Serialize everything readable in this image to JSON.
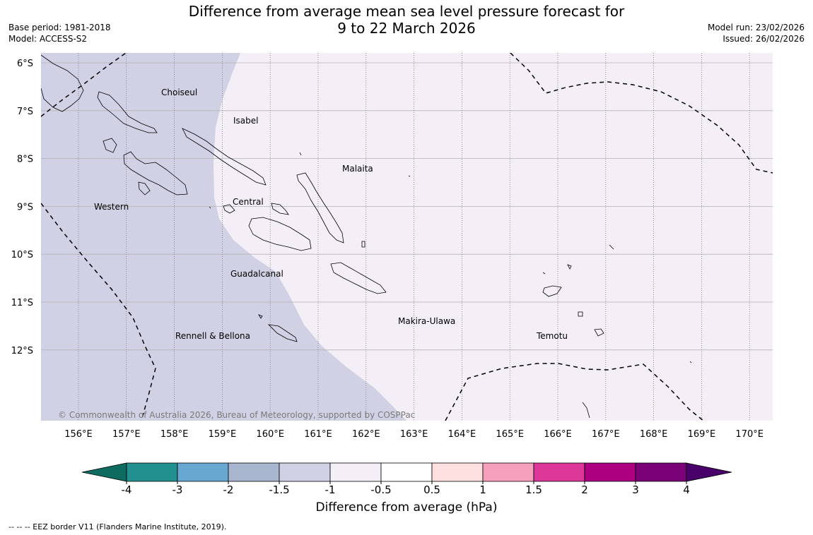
{
  "title": {
    "line1": "Difference from average mean sea level pressure forecast for",
    "line2": "9 to 22 March 2026"
  },
  "meta_left": {
    "base_period": "Base period: 1981-2018",
    "model": "Model: ACCESS-S2"
  },
  "meta_right": {
    "model_run": "Model run: 23/02/2026",
    "issued": "Issued: 26/02/2026"
  },
  "map": {
    "lat_labels": [
      "6°S",
      "7°S",
      "8°S",
      "9°S",
      "10°S",
      "11°S",
      "12°S"
    ],
    "lon_labels": [
      "156°E",
      "157°E",
      "158°E",
      "159°E",
      "160°E",
      "161°E",
      "162°E",
      "163°E",
      "164°E",
      "165°E",
      "166°E",
      "167°E",
      "168°E",
      "169°E",
      "170°E"
    ],
    "provinces": {
      "choiseul": "Choiseul",
      "isabel": "Isabel",
      "malaita": "Malaita",
      "western": "Western",
      "central": "Central",
      "guadalcanal": "Guadalcanal",
      "rennell_bellona": "Rennell & Bellona",
      "makira_ulawa": "Makira-Ulawa",
      "temotu": "Temotu"
    },
    "copyright": "© Commonwealth of Australia 2026, Bureau of Meteorology, supported by COSPPac",
    "fill_colors": {
      "range_neg_1_5_to_neg_1": "#d0d1e4",
      "range_neg_1_to_neg_0_5": "#f4eef6"
    }
  },
  "colorbar": {
    "title": "Difference from average (hPa)",
    "ticks": [
      "-4",
      "-3",
      "-2",
      "-1.5",
      "-1",
      "-0.5",
      "0.5",
      "1",
      "1.5",
      "2",
      "3",
      "4"
    ],
    "colors": [
      "#0e6b5f",
      "#22908f",
      "#68a8d0",
      "#a9b6d0",
      "#d0d1e4",
      "#f4eef6",
      "#ffffff",
      "#fee0e0",
      "#f7a0bd",
      "#dc3699",
      "#ad0080",
      "#7a0077",
      "#49006a"
    ]
  },
  "footer": "--  --  -- EEZ border V11 (Flanders Marine Institute, 2019)."
}
